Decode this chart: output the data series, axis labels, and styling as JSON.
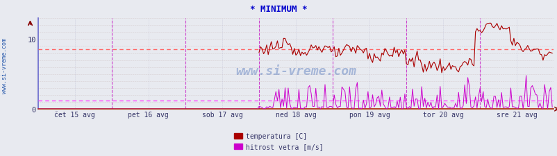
{
  "title": "* MINIMUM *",
  "title_color": "#0000cc",
  "bg_color": "#e8eaf0",
  "plot_bg_color": "#e8eaf0",
  "grid_color_h": "#c8a0a0",
  "grid_color_v": "#c0c0d8",
  "ylabel_left": "www.si-vreme.com",
  "x_labels": [
    "čet 15 avg",
    "pet 16 avg",
    "sob 17 avg",
    "ned 18 avg",
    "pon 19 avg",
    "tor 20 avg",
    "sre 21 avg"
  ],
  "y_ticks": [
    0,
    10
  ],
  "ylim": [
    0,
    13
  ],
  "temp_color": "#aa0000",
  "wind_color": "#cc00cc",
  "temp_ref_line": 8.5,
  "wind_ref_line": 1.2,
  "temp_ref_color": "#ff6666",
  "wind_ref_color": "#ff44ff",
  "legend_temp": "temperatura [C]",
  "legend_wind": "hitrost vetra [m/s]",
  "watermark": "www.si-vreme.com",
  "watermark_color": "#5577bb",
  "n_points": 336,
  "day_boundaries": [
    0,
    48,
    96,
    144,
    192,
    240,
    288,
    336
  ],
  "day_tick_positions": [
    24,
    72,
    120,
    168,
    216,
    264,
    312
  ],
  "left_spine_color": "#6666cc",
  "bottom_spine_color": "#aa2200",
  "arrow_color": "#880000"
}
